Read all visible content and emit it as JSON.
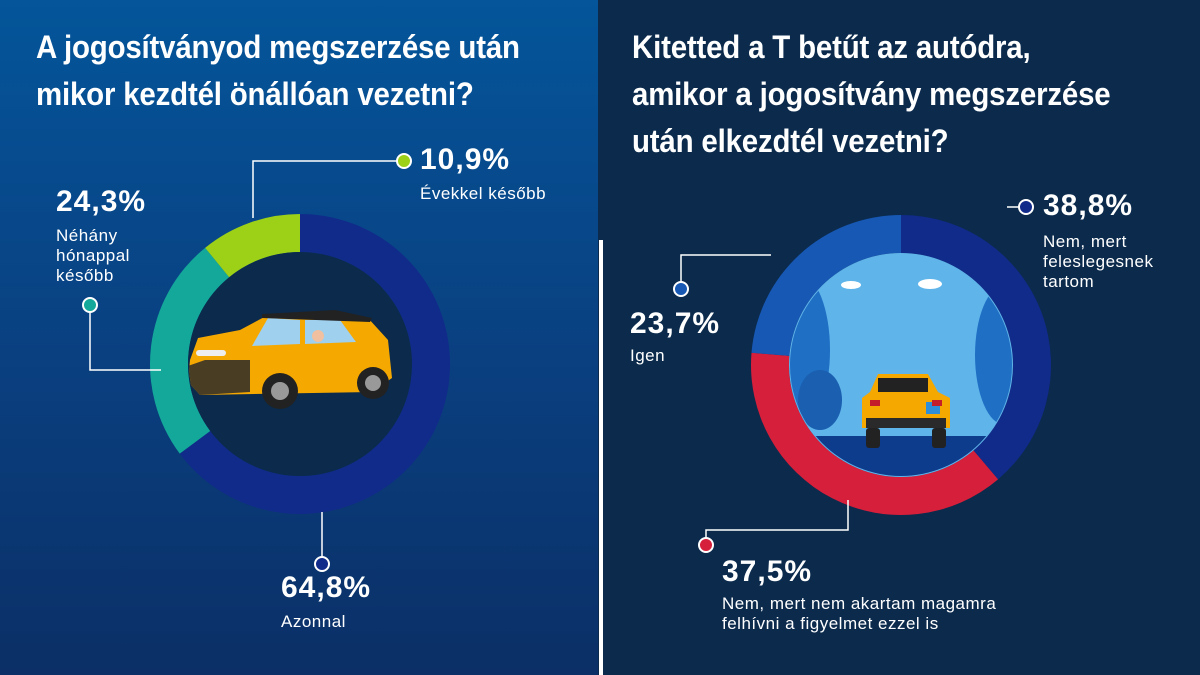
{
  "left": {
    "title_line1": "A jogosítványod megszerzése után",
    "title_line2": "mikor kezdtél önállóan vezetni?"
  },
  "right": {
    "title_line1": "Kitetted a T betűt az autódra,",
    "title_line2": "amikor a jogosítvány megszerzése",
    "title_line3": "után elkezdtél vezetni?"
  },
  "chart_data": [
    {
      "type": "pie",
      "title": "A jogosítványod megszerzése után mikor kezdtél önállóan vezetni?",
      "slices": [
        {
          "label": "Azonnal",
          "value": 64.8,
          "display": "64,8%",
          "color": "#112b8a"
        },
        {
          "label": "Néhány hónappal később",
          "value": 24.3,
          "display": "24,3%",
          "color": "#14a89a"
        },
        {
          "label": "Évekkel később",
          "value": 10.9,
          "display": "10,9%",
          "color": "#9cd118"
        }
      ]
    },
    {
      "type": "pie",
      "title": "Kitetted a T betűt az autódra, amikor a jogosítvány megszerzése után elkezdtél vezetni?",
      "slices": [
        {
          "label": "Nem, mert feleslegesnek tartom",
          "value": 38.8,
          "display": "38,8%",
          "color": "#112b8a"
        },
        {
          "label": "Nem, mert nem akartam magamra felhívni a figyelmet ezzel is",
          "value": 37.5,
          "display": "37,5%",
          "color": "#d61f3b"
        },
        {
          "label": "Igen",
          "value": 23.7,
          "display": "23,7%",
          "color": "#1658b4"
        }
      ]
    }
  ],
  "labels": {
    "l0_pct": "64,8%",
    "l0_text": "Azonnal",
    "l1_pct": "24,3%",
    "l1_text": "Néhány\nhónappal\nkésőbb",
    "l2_pct": "10,9%",
    "l2_text": "Évekkel később",
    "r0_pct": "38,8%",
    "r0_text": "Nem, mert\nfeleslegesnek\ntartom",
    "r1_pct": "37,5%",
    "r1_text": "Nem, mert nem akartam magamra\nfelhívni a figyelmet ezzel is",
    "r2_pct": "23,7%",
    "r2_text": "Igen"
  },
  "colors": {
    "car_body": "#f5a800",
    "sky": "#5fb4ea",
    "connector": "#ffffff"
  }
}
